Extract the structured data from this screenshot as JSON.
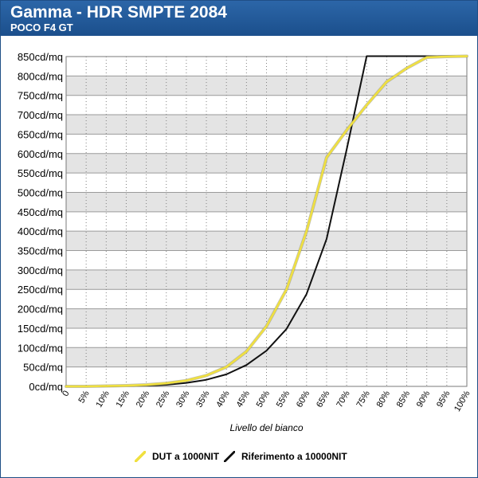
{
  "header": {
    "title": "Gamma - HDR SMPTE 2084",
    "subtitle": "POCO F4 GT",
    "background": "#1f5596"
  },
  "chart_data": {
    "type": "line",
    "title": "Gamma - HDR SMPTE 2084",
    "subtitle": "POCO F4 GT",
    "xlabel": "Livello del bianco",
    "ylabel": "",
    "x": [
      0,
      5,
      10,
      15,
      20,
      25,
      30,
      35,
      40,
      45,
      50,
      55,
      60,
      65,
      70,
      75,
      80,
      85,
      90,
      95,
      100
    ],
    "x_tick_labels": [
      "0",
      "5%",
      "10%",
      "15%",
      "20%",
      "25%",
      "30%",
      "35%",
      "40%",
      "45%",
      "50%",
      "55%",
      "60%",
      "65%",
      "70%",
      "75%",
      "80%",
      "85%",
      "90%",
      "95%",
      "100%"
    ],
    "y_ticks": [
      0,
      50,
      100,
      150,
      200,
      250,
      300,
      350,
      400,
      450,
      500,
      550,
      600,
      650,
      700,
      750,
      800,
      850
    ],
    "y_tick_labels": [
      "0cd/mq",
      "50cd/mq",
      "100cd/mq",
      "150cd/mq",
      "200cd/mq",
      "250cd/mq",
      "300cd/mq",
      "350cd/mq",
      "400cd/mq",
      "450cd/mq",
      "500cd/mq",
      "550cd/mq",
      "600cd/mq",
      "650cd/mq",
      "700cd/mq",
      "750cd/mq",
      "800cd/mq",
      "850cd/mq"
    ],
    "xlim": [
      0,
      100
    ],
    "ylim": [
      0,
      850
    ],
    "grid": true,
    "legend_position": "bottom",
    "series": [
      {
        "name": "DUT a 1000NIT",
        "color": "#f0e040",
        "values": [
          0,
          0,
          1,
          2,
          4,
          8,
          15,
          28,
          50,
          90,
          155,
          250,
          400,
          590,
          660,
          725,
          785,
          820,
          848,
          850,
          851
        ]
      },
      {
        "name": "Riferimento a 10000NIT",
        "color": "#111111",
        "values": [
          0,
          0,
          0,
          1,
          2,
          4,
          9,
          17,
          31,
          55,
          92,
          148,
          238,
          380,
          610,
          851,
          851,
          851,
          851,
          851,
          851
        ]
      }
    ]
  }
}
